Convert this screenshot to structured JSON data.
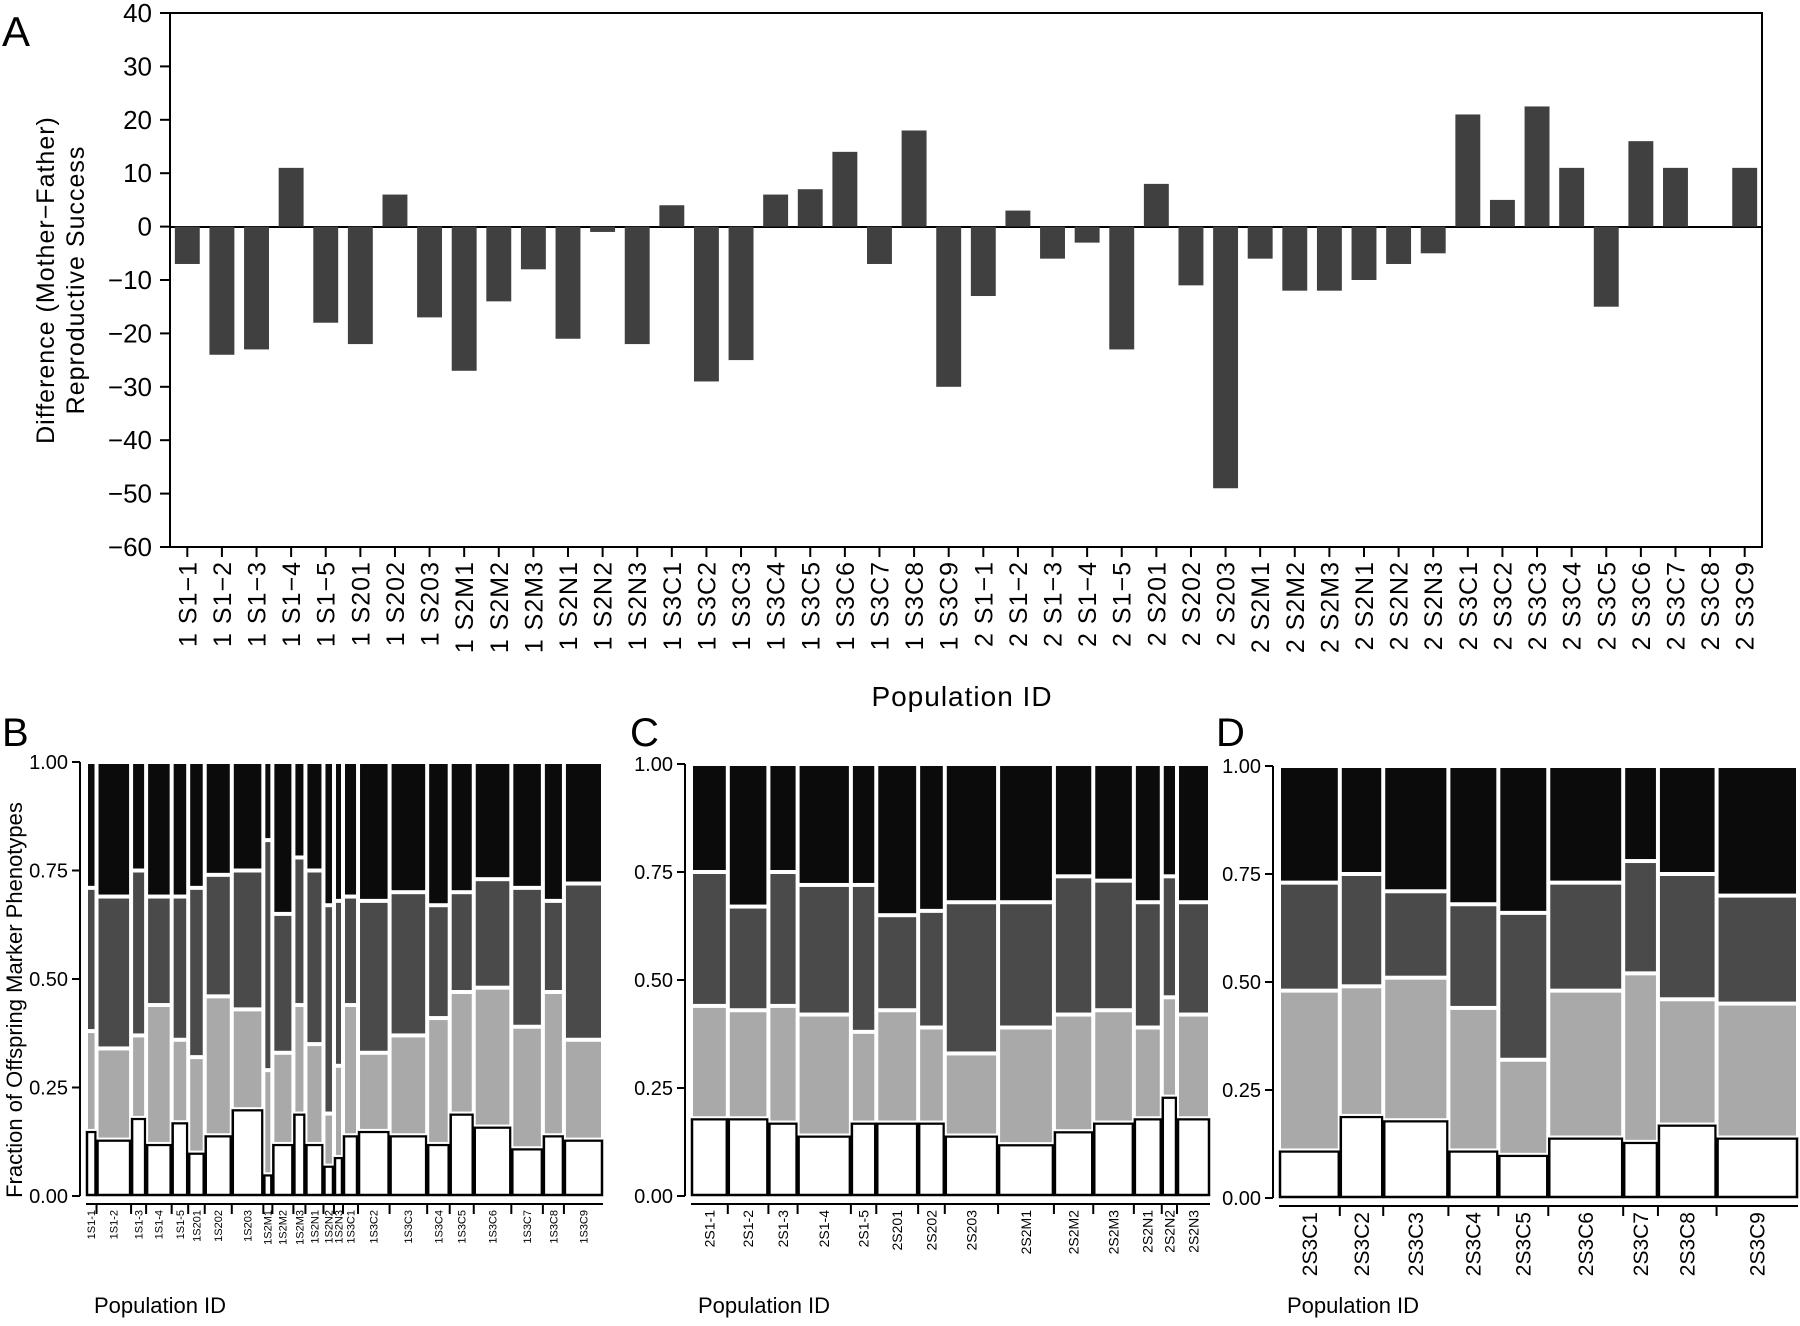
{
  "colors": {
    "bar": "#404040",
    "axis": "#000000",
    "mosaic_fills": [
      "#ffffff",
      "#a9a9a9",
      "#4a4a4a",
      "#0b0b0b"
    ],
    "mosaic_stroke": "#ffffff"
  },
  "panel_labels": {
    "a": "A",
    "b": "B",
    "c": "C",
    "d": "D"
  },
  "chart_data": [
    {
      "id": "A",
      "type": "bar",
      "ylabel_lines": [
        "Difference (Mother−Father)",
        "Reproductive Success"
      ],
      "xlabel": "Population ID",
      "ylim": [
        -60,
        40
      ],
      "yticks": [
        40,
        30,
        20,
        10,
        0,
        -10,
        -20,
        -30,
        -40,
        -50,
        -60
      ],
      "ytick_labels": [
        "40",
        "30",
        "20",
        "10",
        "0",
        "−10",
        "−20",
        "−30",
        "−40",
        "−50",
        "−60"
      ],
      "grid": false,
      "categories": [
        "1 S1−1",
        "1 S1−2",
        "1 S1−3",
        "1 S1−4",
        "1 S1−5",
        "1 S201",
        "1 S202",
        "1 S203",
        "1 S2M1",
        "1 S2M2",
        "1 S2M3",
        "1 S2N1",
        "1 S2N2",
        "1 S2N3",
        "1 S3C1",
        "1 S3C2",
        "1 S3C3",
        "1 S3C4",
        "1 S3C5",
        "1 S3C6",
        "1 S3C7",
        "1 S3C8",
        "1 S3C9",
        "2 S1−1",
        "2 S1−2",
        "2 S1−3",
        "2 S1−4",
        "2 S1−5",
        "2 S201",
        "2 S202",
        "2 S203",
        "2 S2M1",
        "2 S2M2",
        "2 S2M3",
        "2 S2N1",
        "2 S2N2",
        "2 S2N3",
        "2 S3C1",
        "2 S3C2",
        "2 S3C3",
        "2 S3C4",
        "2 S3C5",
        "2 S3C6",
        "2 S3C7",
        "2 S3C8",
        "2 S3C9"
      ],
      "values": [
        -7,
        -24,
        -23,
        11,
        -18,
        -22,
        6,
        -17,
        -27,
        -14,
        -8,
        -21,
        -1,
        -22,
        4,
        -29,
        -25,
        6,
        7,
        14,
        -7,
        18,
        -30,
        -13,
        3,
        -6,
        -3,
        -23,
        8,
        -11,
        -49,
        -6,
        -12,
        -12,
        -10,
        -7,
        -5,
        21,
        5,
        22.5,
        11,
        -15,
        16,
        11,
        0,
        11
      ]
    },
    {
      "id": "B",
      "type": "mosaic",
      "ylabel": "Fraction of Offspring Marker Phenotypes",
      "xlabel": "Population ID",
      "yticks": [
        "0.00",
        "0.25",
        "0.50",
        "0.75",
        "1.00"
      ],
      "categories": [
        "1S1-1",
        "1S1-2",
        "1S1-3",
        "1S1-4",
        "1S1-5",
        "1S201",
        "1S202",
        "1S203",
        "1S2M1",
        "1S2M2",
        "1S2M3",
        "1S2N1",
        "1S2N2",
        "1S2N3",
        "1S3C1",
        "1S3C2",
        "1S3C3",
        "1S3C4",
        "1S3C5",
        "1S3C6",
        "1S3C7",
        "1S3C8",
        "1S3C9"
      ],
      "column_share": [
        0.7,
        2.3,
        1.0,
        1.7,
        1.1,
        1.1,
        1.8,
        2.1,
        0.6,
        1.4,
        0.8,
        1.2,
        0.7,
        0.6,
        1.0,
        2.1,
        2.5,
        1.5,
        1.6,
        2.5,
        2.1,
        1.4,
        2.6
      ],
      "cumulative": [
        [
          0.15,
          0.38,
          0.71
        ],
        [
          0.13,
          0.34,
          0.69
        ],
        [
          0.18,
          0.37,
          0.75
        ],
        [
          0.12,
          0.44,
          0.69
        ],
        [
          0.17,
          0.36,
          0.69
        ],
        [
          0.1,
          0.32,
          0.71
        ],
        [
          0.14,
          0.46,
          0.74
        ],
        [
          0.2,
          0.43,
          0.75
        ],
        [
          0.05,
          0.29,
          0.82
        ],
        [
          0.12,
          0.33,
          0.65
        ],
        [
          0.19,
          0.44,
          0.78
        ],
        [
          0.12,
          0.35,
          0.75
        ],
        [
          0.07,
          0.19,
          0.67
        ],
        [
          0.09,
          0.3,
          0.68
        ],
        [
          0.14,
          0.44,
          0.69
        ],
        [
          0.15,
          0.33,
          0.68
        ],
        [
          0.14,
          0.37,
          0.7
        ],
        [
          0.12,
          0.41,
          0.67
        ],
        [
          0.19,
          0.47,
          0.7
        ],
        [
          0.16,
          0.48,
          0.73
        ],
        [
          0.11,
          0.39,
          0.71
        ],
        [
          0.14,
          0.47,
          0.68
        ],
        [
          0.13,
          0.36,
          0.72
        ]
      ]
    },
    {
      "id": "C",
      "type": "mosaic",
      "xlabel": "Population ID",
      "yticks": [
        "0.00",
        "0.25",
        "0.50",
        "0.75",
        "1.00"
      ],
      "categories": [
        "2S1-1",
        "2S1-2",
        "2S1-3",
        "2S1-4",
        "2S1-5",
        "2S201",
        "2S202",
        "2S203",
        "2S2M1",
        "2S2M2",
        "2S2M3",
        "2S2N1",
        "2S2N2",
        "2S2N3"
      ],
      "column_share": [
        2.9,
        3.2,
        2.3,
        4.2,
        2.0,
        3.3,
        2.1,
        4.2,
        4.4,
        3.1,
        3.2,
        2.2,
        1.2,
        2.6
      ],
      "cumulative": [
        [
          0.18,
          0.44,
          0.75
        ],
        [
          0.18,
          0.43,
          0.67
        ],
        [
          0.17,
          0.44,
          0.75
        ],
        [
          0.14,
          0.42,
          0.72
        ],
        [
          0.17,
          0.38,
          0.72
        ],
        [
          0.17,
          0.43,
          0.65
        ],
        [
          0.17,
          0.39,
          0.66
        ],
        [
          0.14,
          0.33,
          0.68
        ],
        [
          0.12,
          0.39,
          0.68
        ],
        [
          0.15,
          0.42,
          0.74
        ],
        [
          0.17,
          0.43,
          0.73
        ],
        [
          0.18,
          0.39,
          0.68
        ],
        [
          0.23,
          0.46,
          0.74
        ],
        [
          0.18,
          0.42,
          0.68
        ]
      ]
    },
    {
      "id": "D",
      "type": "mosaic",
      "xlabel": "Population ID",
      "yticks": [
        "0.00",
        "0.25",
        "0.50",
        "0.75",
        "1.00"
      ],
      "categories": [
        "2S3C1",
        "2S3C2",
        "2S3C3",
        "2S3C4",
        "2S3C5",
        "2S3C6",
        "2S3C7",
        "2S3C8",
        "2S3C9"
      ],
      "column_share": [
        5.6,
        4.0,
        6.0,
        4.6,
        4.6,
        6.9,
        3.2,
        5.4,
        7.5
      ],
      "cumulative": [
        [
          0.11,
          0.48,
          0.73
        ],
        [
          0.19,
          0.49,
          0.75
        ],
        [
          0.18,
          0.51,
          0.71
        ],
        [
          0.11,
          0.44,
          0.68
        ],
        [
          0.1,
          0.32,
          0.66
        ],
        [
          0.14,
          0.48,
          0.73
        ],
        [
          0.13,
          0.52,
          0.78
        ],
        [
          0.17,
          0.46,
          0.75
        ],
        [
          0.14,
          0.45,
          0.7
        ]
      ]
    }
  ]
}
